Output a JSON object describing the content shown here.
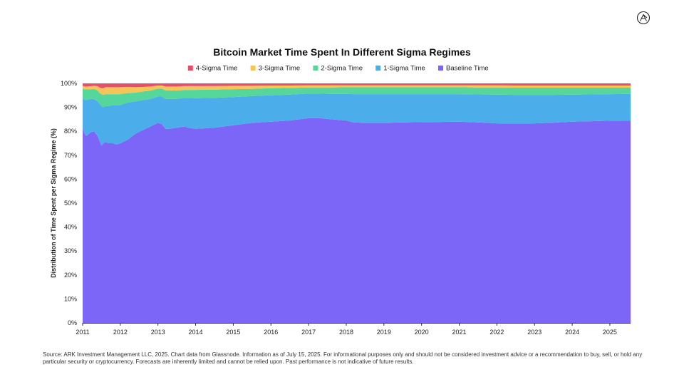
{
  "logo": {
    "icon": "ark-logo-icon",
    "color": "#222222"
  },
  "chart_data": {
    "type": "area",
    "stacked": true,
    "title": "Bitcoin Market Time Spent In Different Sigma Regimes",
    "ylabel": "Distribution of Time Spent per Sigma Regime (%)",
    "xlabel": "",
    "legend_position": "top-center",
    "ylim": [
      0,
      100
    ],
    "xlim": [
      2011.0,
      2025.55
    ],
    "y_ticks": [
      0,
      10,
      20,
      30,
      40,
      50,
      60,
      70,
      80,
      90,
      100
    ],
    "y_tick_labels": [
      "0%",
      "10%",
      "20%",
      "30%",
      "40%",
      "50%",
      "60%",
      "70%",
      "80%",
      "90%",
      "100%"
    ],
    "x_ticks": [
      2011,
      2012,
      2013,
      2014,
      2015,
      2016,
      2017,
      2018,
      2019,
      2020,
      2021,
      2022,
      2023,
      2024,
      2025
    ],
    "x_tick_labels": [
      "2011",
      "2012",
      "2013",
      "2014",
      "2015",
      "2016",
      "2017",
      "2018",
      "2019",
      "2020",
      "2021",
      "2022",
      "2023",
      "2024",
      "2025"
    ],
    "grid": false,
    "x": [
      2011.0,
      2011.05,
      2011.1,
      2011.2,
      2011.3,
      2011.4,
      2011.45,
      2011.5,
      2011.55,
      2011.6,
      2011.7,
      2011.8,
      2011.9,
      2012.0,
      2012.2,
      2012.4,
      2012.6,
      2012.8,
      2013.0,
      2013.1,
      2013.2,
      2013.3,
      2013.5,
      2013.7,
      2013.8,
      2014.0,
      2014.5,
      2015.0,
      2015.5,
      2016.0,
      2016.5,
      2017.0,
      2017.3,
      2017.6,
      2018.0,
      2018.2,
      2018.5,
      2019.0,
      2019.5,
      2020.0,
      2020.5,
      2021.0,
      2021.5,
      2022.0,
      2022.5,
      2023.0,
      2023.5,
      2024.0,
      2024.5,
      2025.0,
      2025.55
    ],
    "series": [
      {
        "name": "Baseline Time",
        "color": "#7b66f7",
        "values": [
          81.5,
          79.0,
          78.0,
          79.5,
          80.0,
          78.0,
          76.0,
          74.0,
          75.0,
          75.5,
          75.0,
          75.0,
          74.5,
          75.0,
          76.5,
          79.0,
          80.5,
          82.0,
          83.5,
          83.0,
          81.0,
          81.0,
          81.5,
          82.0,
          81.5,
          81.0,
          81.5,
          82.5,
          83.5,
          84.0,
          84.5,
          85.5,
          85.5,
          85.0,
          84.5,
          83.7,
          83.5,
          83.5,
          83.7,
          83.8,
          83.9,
          84.0,
          83.7,
          83.3,
          83.2,
          83.3,
          83.6,
          84.0,
          84.2,
          84.4,
          84.5
        ]
      },
      {
        "name": "1-Sigma Time",
        "color": "#4baeea",
        "values": [
          12.5,
          14.0,
          15.0,
          14.0,
          13.5,
          14.5,
          15.5,
          16.5,
          15.0,
          15.0,
          15.5,
          16.0,
          16.5,
          16.0,
          15.5,
          13.5,
          12.5,
          11.5,
          11.0,
          11.5,
          12.5,
          12.5,
          12.0,
          12.0,
          12.5,
          12.8,
          12.5,
          11.8,
          11.2,
          11.0,
          10.8,
          10.2,
          10.2,
          10.6,
          11.1,
          11.8,
          12.0,
          12.0,
          11.8,
          11.7,
          11.6,
          11.5,
          11.7,
          12.0,
          12.0,
          11.9,
          11.6,
          11.3,
          11.2,
          11.1,
          11.1
        ]
      },
      {
        "name": "2-Sigma Time",
        "color": "#55d69b",
        "values": [
          4.0,
          4.5,
          4.5,
          4.0,
          4.2,
          4.5,
          4.5,
          5.0,
          5.2,
          5.0,
          5.0,
          4.5,
          4.5,
          4.5,
          4.0,
          3.6,
          3.6,
          3.5,
          3.3,
          3.3,
          3.6,
          3.6,
          3.5,
          3.3,
          3.3,
          3.5,
          3.4,
          3.3,
          3.0,
          3.0,
          2.8,
          2.6,
          2.6,
          2.7,
          2.8,
          2.9,
          2.9,
          2.9,
          2.9,
          2.9,
          2.9,
          2.9,
          2.9,
          3.0,
          3.0,
          3.0,
          3.0,
          2.9,
          2.8,
          2.7,
          2.6
        ]
      },
      {
        "name": "3-Sigma Time",
        "color": "#f6c457",
        "values": [
          1.0,
          1.2,
          1.2,
          1.3,
          1.3,
          1.8,
          2.3,
          2.5,
          2.8,
          2.9,
          2.9,
          2.9,
          2.9,
          2.9,
          2.5,
          2.3,
          1.9,
          1.7,
          1.3,
          1.3,
          1.6,
          1.6,
          1.7,
          1.6,
          1.6,
          1.6,
          1.5,
          1.4,
          1.3,
          1.1,
          1.0,
          0.9,
          0.9,
          0.9,
          0.8,
          0.8,
          0.8,
          0.8,
          0.8,
          0.8,
          0.8,
          0.8,
          0.9,
          0.9,
          0.9,
          0.9,
          0.9,
          0.9,
          0.9,
          0.9,
          0.9
        ]
      },
      {
        "name": "4-Sigma Time",
        "color": "#e54f6c",
        "values": [
          1.0,
          1.3,
          1.3,
          1.2,
          1.0,
          1.2,
          1.7,
          2.0,
          2.0,
          1.6,
          1.6,
          1.6,
          1.6,
          1.6,
          1.5,
          1.6,
          1.5,
          1.3,
          0.9,
          0.9,
          1.3,
          1.3,
          1.3,
          1.1,
          1.1,
          1.1,
          1.1,
          1.0,
          1.0,
          0.9,
          0.9,
          0.8,
          0.8,
          0.8,
          0.8,
          0.8,
          0.8,
          0.8,
          0.8,
          0.8,
          0.8,
          0.8,
          0.8,
          0.8,
          0.9,
          0.9,
          0.9,
          0.9,
          0.9,
          0.9,
          0.9
        ]
      }
    ],
    "legend_order": [
      "4-Sigma Time",
      "3-Sigma Time",
      "2-Sigma Time",
      "1-Sigma Time",
      "Baseline Time"
    ]
  },
  "footnote": "Source: ARK Investment Management LLC, 2025. Chart data from Glassnode. Information as of July 15, 2025. For informational purposes only and should not be considered investment advice or a recommendation to buy, sell, or hold any particular security or cryptocurrency. Forecasts are inherently limited and cannot be relied upon. Past performance is not indicative of future results."
}
